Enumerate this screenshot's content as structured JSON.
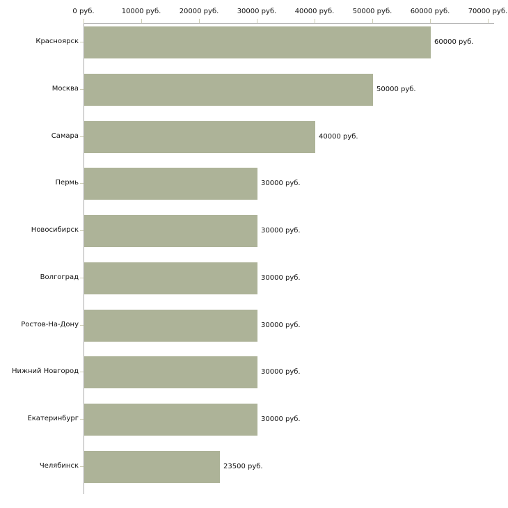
{
  "chart_data": {
    "type": "bar",
    "orientation": "horizontal",
    "title": "",
    "xlabel": "",
    "ylabel": "",
    "unit": "руб.",
    "xlim": [
      0,
      70000
    ],
    "x_axis_position": "top",
    "grid": false,
    "legend": false,
    "categories": [
      "Красноярск",
      "Москва",
      "Самара",
      "Пермь",
      "Новосибирск",
      "Волгоград",
      "Ростов-На-Дону",
      "Нижний Новгород",
      "Екатеринбург",
      "Челябинск"
    ],
    "values": [
      60000,
      50000,
      40000,
      30000,
      30000,
      30000,
      30000,
      30000,
      30000,
      23500
    ],
    "bar_labels": [
      "60000 руб.",
      "50000 руб.",
      "40000 руб.",
      "30000 руб.",
      "30000 руб.",
      "30000 руб.",
      "30000 руб.",
      "30000 руб.",
      "30000 руб.",
      "23500 руб."
    ],
    "x_ticks": [
      {
        "value": 0,
        "label": "0 руб."
      },
      {
        "value": 10000,
        "label": "10000 руб."
      },
      {
        "value": 20000,
        "label": "20000 руб."
      },
      {
        "value": 30000,
        "label": "30000 руб."
      },
      {
        "value": 40000,
        "label": "40000 руб."
      },
      {
        "value": 50000,
        "label": "50000 руб."
      },
      {
        "value": 60000,
        "label": "60000 руб."
      },
      {
        "value": 70000,
        "label": "70000 руб."
      }
    ],
    "colors": {
      "bar": "#adb398",
      "axis_line": "#aaaaaa",
      "tick_mark": "#ccccb3",
      "text": "#111111",
      "background": "#ffffff"
    }
  }
}
